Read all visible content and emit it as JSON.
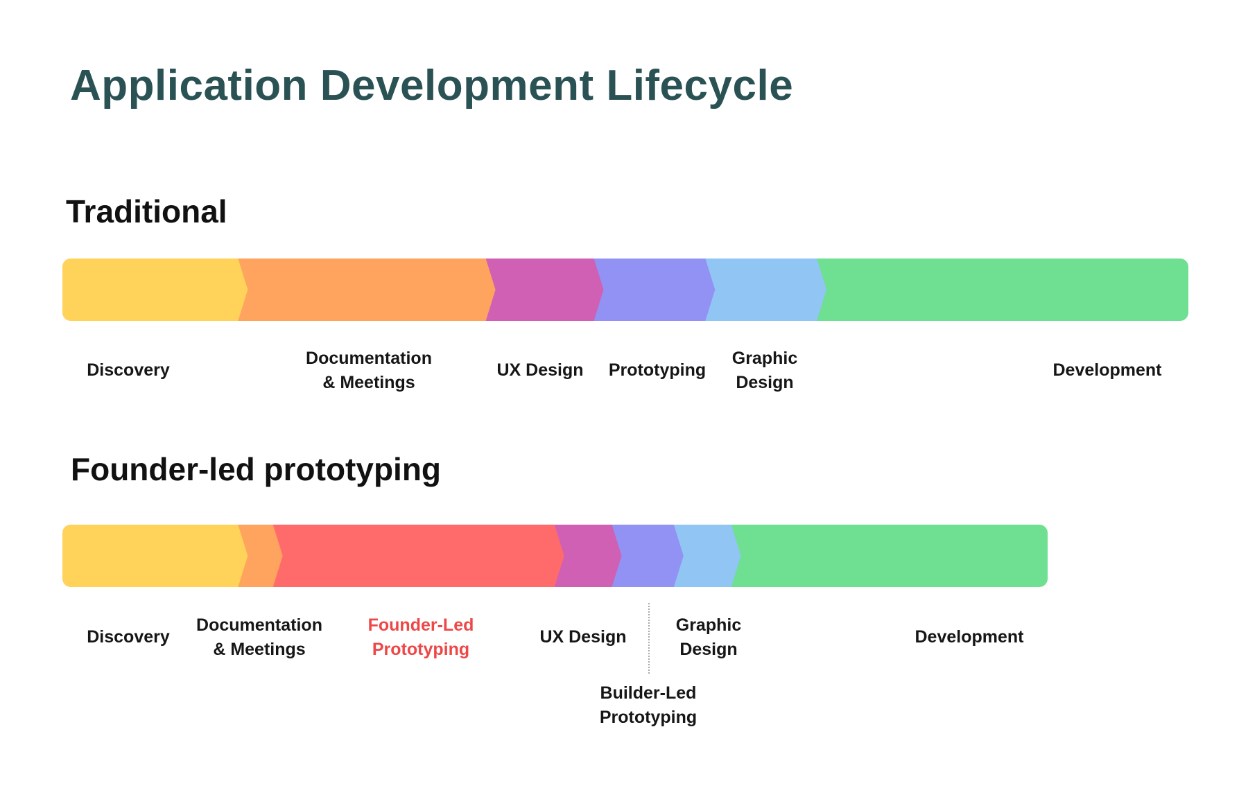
{
  "title": "Application Development Lifecycle",
  "sections": [
    {
      "id": "traditional",
      "title": "Traditional",
      "stages": [
        {
          "key": "discovery",
          "label": "Discovery",
          "color": "#ffd25a",
          "relative_length": 15.6,
          "highlight": false
        },
        {
          "key": "documentation-meetings",
          "label": "Documentation\n& Meetings",
          "color": "#ffa45f",
          "relative_length": 22.0,
          "highlight": false
        },
        {
          "key": "ux-design",
          "label": "UX Design",
          "color": "#cf60b4",
          "relative_length": 9.6,
          "highlight": false
        },
        {
          "key": "prototyping",
          "label": "Prototyping",
          "color": "#9192f3",
          "relative_length": 9.9,
          "highlight": false
        },
        {
          "key": "graphic-design",
          "label": "Graphic\nDesign",
          "color": "#91c5f4",
          "relative_length": 9.9,
          "highlight": false
        },
        {
          "key": "development",
          "label": "Development",
          "color": "#6fdf91",
          "relative_length": 33.0,
          "highlight": false
        }
      ]
    },
    {
      "id": "founder-led",
      "title": "Founder-led prototyping",
      "stages": [
        {
          "key": "discovery",
          "label": "Discovery",
          "color": "#ffd25a",
          "relative_length": 15.6,
          "highlight": false
        },
        {
          "key": "documentation-meetings",
          "label": "Documentation\n& Meetings",
          "color": "#ffa45f",
          "relative_length": 3.1,
          "highlight": false
        },
        {
          "key": "founder-led-prototyping",
          "label": "Founder-Led\nPrototyping",
          "color": "#ff6b6b",
          "relative_length": 25.0,
          "highlight": true
        },
        {
          "key": "ux-design",
          "label": "UX Design",
          "color": "#cf60b4",
          "relative_length": 5.1,
          "highlight": false
        },
        {
          "key": "builder-led-prototyping",
          "label": "Builder-Led\nPrototyping",
          "color": "#9192f3",
          "relative_length": 5.5,
          "highlight": false
        },
        {
          "key": "graphic-design",
          "label": "Graphic\nDesign",
          "color": "#91c5f4",
          "relative_length": 5.1,
          "highlight": false
        },
        {
          "key": "development",
          "label": "Development",
          "color": "#6fdf91",
          "relative_length": 28.1,
          "highlight": false
        }
      ]
    }
  ]
}
